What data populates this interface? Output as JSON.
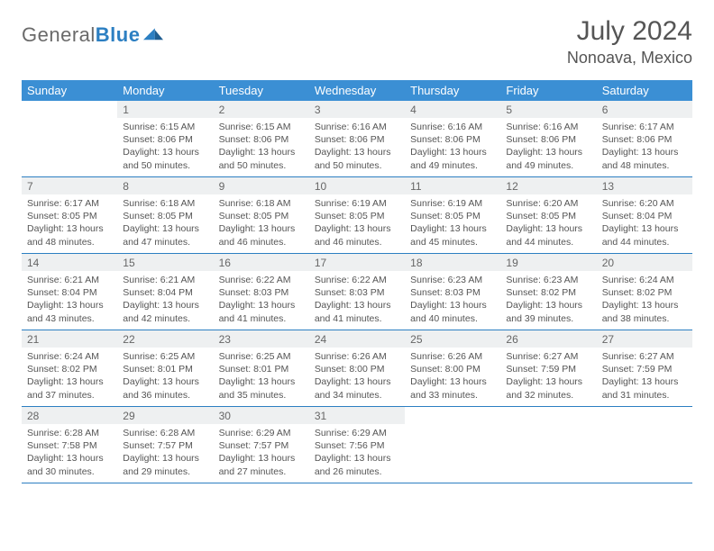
{
  "logo": {
    "name": "General",
    "accent": "Blue"
  },
  "title": "July 2024",
  "location": "Nonoava, Mexico",
  "colors": {
    "header_bg": "#3b8fd4",
    "week_divider": "#2c7fc2",
    "datenum_bg": "#eef0f1",
    "text": "#555555"
  },
  "day_names": [
    "Sunday",
    "Monday",
    "Tuesday",
    "Wednesday",
    "Thursday",
    "Friday",
    "Saturday"
  ],
  "first_weekday_offset": 1,
  "days": [
    {
      "d": 1,
      "sunrise": "6:15 AM",
      "sunset": "8:06 PM",
      "daylight": "13 hours and 50 minutes."
    },
    {
      "d": 2,
      "sunrise": "6:15 AM",
      "sunset": "8:06 PM",
      "daylight": "13 hours and 50 minutes."
    },
    {
      "d": 3,
      "sunrise": "6:16 AM",
      "sunset": "8:06 PM",
      "daylight": "13 hours and 50 minutes."
    },
    {
      "d": 4,
      "sunrise": "6:16 AM",
      "sunset": "8:06 PM",
      "daylight": "13 hours and 49 minutes."
    },
    {
      "d": 5,
      "sunrise": "6:16 AM",
      "sunset": "8:06 PM",
      "daylight": "13 hours and 49 minutes."
    },
    {
      "d": 6,
      "sunrise": "6:17 AM",
      "sunset": "8:06 PM",
      "daylight": "13 hours and 48 minutes."
    },
    {
      "d": 7,
      "sunrise": "6:17 AM",
      "sunset": "8:05 PM",
      "daylight": "13 hours and 48 minutes."
    },
    {
      "d": 8,
      "sunrise": "6:18 AM",
      "sunset": "8:05 PM",
      "daylight": "13 hours and 47 minutes."
    },
    {
      "d": 9,
      "sunrise": "6:18 AM",
      "sunset": "8:05 PM",
      "daylight": "13 hours and 46 minutes."
    },
    {
      "d": 10,
      "sunrise": "6:19 AM",
      "sunset": "8:05 PM",
      "daylight": "13 hours and 46 minutes."
    },
    {
      "d": 11,
      "sunrise": "6:19 AM",
      "sunset": "8:05 PM",
      "daylight": "13 hours and 45 minutes."
    },
    {
      "d": 12,
      "sunrise": "6:20 AM",
      "sunset": "8:05 PM",
      "daylight": "13 hours and 44 minutes."
    },
    {
      "d": 13,
      "sunrise": "6:20 AM",
      "sunset": "8:04 PM",
      "daylight": "13 hours and 44 minutes."
    },
    {
      "d": 14,
      "sunrise": "6:21 AM",
      "sunset": "8:04 PM",
      "daylight": "13 hours and 43 minutes."
    },
    {
      "d": 15,
      "sunrise": "6:21 AM",
      "sunset": "8:04 PM",
      "daylight": "13 hours and 42 minutes."
    },
    {
      "d": 16,
      "sunrise": "6:22 AM",
      "sunset": "8:03 PM",
      "daylight": "13 hours and 41 minutes."
    },
    {
      "d": 17,
      "sunrise": "6:22 AM",
      "sunset": "8:03 PM",
      "daylight": "13 hours and 41 minutes."
    },
    {
      "d": 18,
      "sunrise": "6:23 AM",
      "sunset": "8:03 PM",
      "daylight": "13 hours and 40 minutes."
    },
    {
      "d": 19,
      "sunrise": "6:23 AM",
      "sunset": "8:02 PM",
      "daylight": "13 hours and 39 minutes."
    },
    {
      "d": 20,
      "sunrise": "6:24 AM",
      "sunset": "8:02 PM",
      "daylight": "13 hours and 38 minutes."
    },
    {
      "d": 21,
      "sunrise": "6:24 AM",
      "sunset": "8:02 PM",
      "daylight": "13 hours and 37 minutes."
    },
    {
      "d": 22,
      "sunrise": "6:25 AM",
      "sunset": "8:01 PM",
      "daylight": "13 hours and 36 minutes."
    },
    {
      "d": 23,
      "sunrise": "6:25 AM",
      "sunset": "8:01 PM",
      "daylight": "13 hours and 35 minutes."
    },
    {
      "d": 24,
      "sunrise": "6:26 AM",
      "sunset": "8:00 PM",
      "daylight": "13 hours and 34 minutes."
    },
    {
      "d": 25,
      "sunrise": "6:26 AM",
      "sunset": "8:00 PM",
      "daylight": "13 hours and 33 minutes."
    },
    {
      "d": 26,
      "sunrise": "6:27 AM",
      "sunset": "7:59 PM",
      "daylight": "13 hours and 32 minutes."
    },
    {
      "d": 27,
      "sunrise": "6:27 AM",
      "sunset": "7:59 PM",
      "daylight": "13 hours and 31 minutes."
    },
    {
      "d": 28,
      "sunrise": "6:28 AM",
      "sunset": "7:58 PM",
      "daylight": "13 hours and 30 minutes."
    },
    {
      "d": 29,
      "sunrise": "6:28 AM",
      "sunset": "7:57 PM",
      "daylight": "13 hours and 29 minutes."
    },
    {
      "d": 30,
      "sunrise": "6:29 AM",
      "sunset": "7:57 PM",
      "daylight": "13 hours and 27 minutes."
    },
    {
      "d": 31,
      "sunrise": "6:29 AM",
      "sunset": "7:56 PM",
      "daylight": "13 hours and 26 minutes."
    }
  ],
  "labels": {
    "sunrise": "Sunrise:",
    "sunset": "Sunset:",
    "daylight": "Daylight:"
  }
}
